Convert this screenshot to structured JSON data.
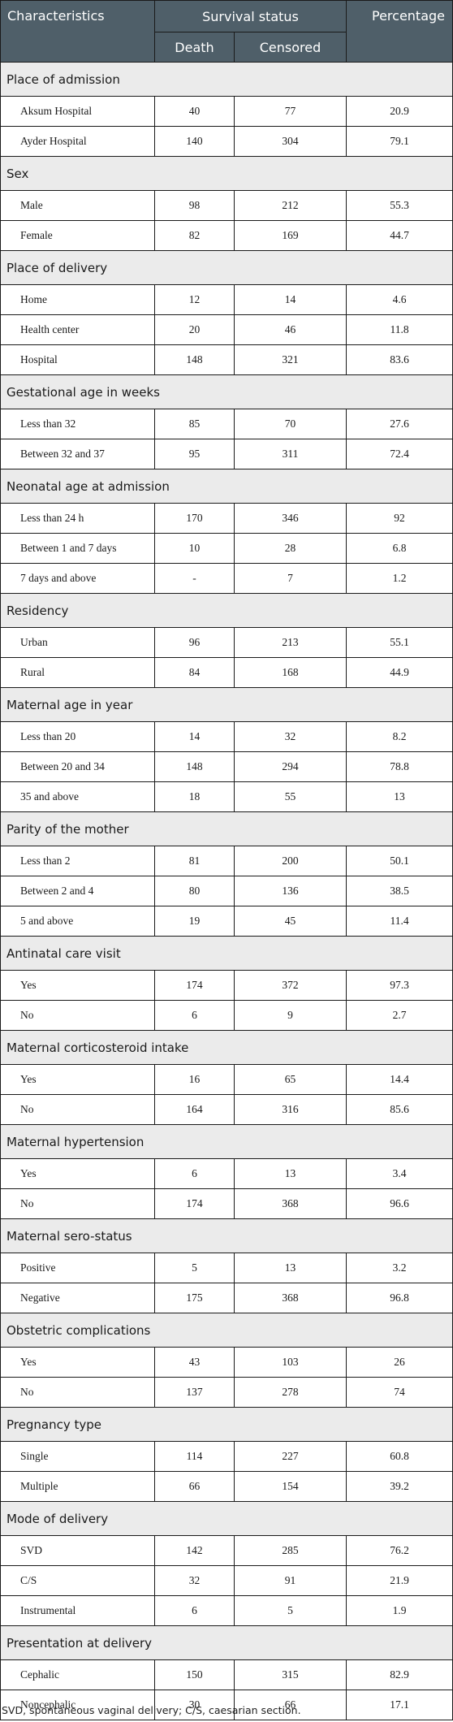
{
  "header": {
    "characteristics": "Characteristics",
    "survival_status": "Survival status",
    "percentage": "Percentage",
    "death": "Death",
    "censored": "Censored"
  },
  "sections": [
    {
      "title": "Place of admission",
      "rows": [
        {
          "label": "Aksum Hospital",
          "death": "40",
          "censored": "77",
          "percentage": "20.9"
        },
        {
          "label": "Ayder Hospital",
          "death": "140",
          "censored": "304",
          "percentage": "79.1"
        }
      ]
    },
    {
      "title": "Sex",
      "rows": [
        {
          "label": "Male",
          "death": "98",
          "censored": "212",
          "percentage": "55.3"
        },
        {
          "label": "Female",
          "death": "82",
          "censored": "169",
          "percentage": "44.7"
        }
      ]
    },
    {
      "title": "Place of delivery",
      "rows": [
        {
          "label": "Home",
          "death": "12",
          "censored": "14",
          "percentage": "4.6"
        },
        {
          "label": "Health center",
          "death": "20",
          "censored": "46",
          "percentage": "11.8"
        },
        {
          "label": "Hospital",
          "death": "148",
          "censored": "321",
          "percentage": "83.6"
        }
      ]
    },
    {
      "title": "Gestational age in weeks",
      "rows": [
        {
          "label": "Less than 32",
          "death": "85",
          "censored": "70",
          "percentage": "27.6"
        },
        {
          "label": "Between 32 and 37",
          "death": "95",
          "censored": "311",
          "percentage": "72.4"
        }
      ]
    },
    {
      "title": "Neonatal age at admission",
      "rows": [
        {
          "label": "Less than 24 h",
          "death": "170",
          "censored": "346",
          "percentage": "92"
        },
        {
          "label": "Between 1 and 7 days",
          "death": "10",
          "censored": "28",
          "percentage": "6.8"
        },
        {
          "label": "7 days and above",
          "death": "-",
          "censored": "7",
          "percentage": "1.2"
        }
      ]
    },
    {
      "title": "Residency",
      "rows": [
        {
          "label": "Urban",
          "death": "96",
          "censored": "213",
          "percentage": "55.1"
        },
        {
          "label": "Rural",
          "death": "84",
          "censored": "168",
          "percentage": "44.9"
        }
      ]
    },
    {
      "title": "Maternal age in year",
      "rows": [
        {
          "label": "Less than 20",
          "death": "14",
          "censored": "32",
          "percentage": "8.2"
        },
        {
          "label": "Between 20 and 34",
          "death": "148",
          "censored": "294",
          "percentage": "78.8"
        },
        {
          "label": "35 and above",
          "death": "18",
          "censored": "55",
          "percentage": "13"
        }
      ]
    },
    {
      "title": "Parity of the mother",
      "rows": [
        {
          "label": "Less than 2",
          "death": "81",
          "censored": "200",
          "percentage": "50.1"
        },
        {
          "label": "Between 2 and 4",
          "death": "80",
          "censored": "136",
          "percentage": "38.5"
        },
        {
          "label": "5 and above",
          "death": "19",
          "censored": "45",
          "percentage": "11.4"
        }
      ]
    },
    {
      "title": "Antinatal care visit",
      "rows": [
        {
          "label": "Yes",
          "death": "174",
          "censored": "372",
          "percentage": "97.3"
        },
        {
          "label": "No",
          "death": "6",
          "censored": "9",
          "percentage": "2.7"
        }
      ]
    },
    {
      "title": "Maternal corticosteroid intake",
      "rows": [
        {
          "label": "Yes",
          "death": "16",
          "censored": "65",
          "percentage": "14.4"
        },
        {
          "label": "No",
          "death": "164",
          "censored": "316",
          "percentage": "85.6"
        }
      ]
    },
    {
      "title": "Maternal hypertension",
      "rows": [
        {
          "label": "Yes",
          "death": "6",
          "censored": "13",
          "percentage": "3.4"
        },
        {
          "label": "No",
          "death": "174",
          "censored": "368",
          "percentage": "96.6"
        }
      ]
    },
    {
      "title": "Maternal sero-status",
      "rows": [
        {
          "label": "Positive",
          "death": "5",
          "censored": "13",
          "percentage": "3.2"
        },
        {
          "label": "Negative",
          "death": "175",
          "censored": "368",
          "percentage": "96.8"
        }
      ]
    },
    {
      "title": "Obstetric complications",
      "rows": [
        {
          "label": "Yes",
          "death": "43",
          "censored": "103",
          "percentage": "26"
        },
        {
          "label": "No",
          "death": "137",
          "censored": "278",
          "percentage": "74"
        }
      ]
    },
    {
      "title": "Pregnancy type",
      "rows": [
        {
          "label": "Single",
          "death": "114",
          "censored": "227",
          "percentage": "60.8"
        },
        {
          "label": "Multiple",
          "death": "66",
          "censored": "154",
          "percentage": "39.2"
        }
      ]
    },
    {
      "title": "Mode of delivery",
      "rows": [
        {
          "label": "SVD",
          "death": "142",
          "censored": "285",
          "percentage": "76.2"
        },
        {
          "label": "C/S",
          "death": "32",
          "censored": "91",
          "percentage": "21.9"
        },
        {
          "label": "Instrumental",
          "death": "6",
          "censored": "5",
          "percentage": "1.9"
        }
      ]
    },
    {
      "title": "Presentation at delivery",
      "rows": [
        {
          "label": "Cephalic",
          "death": "150",
          "censored": "315",
          "percentage": "82.9"
        },
        {
          "label": "Noncephalic",
          "death": "30",
          "censored": "66",
          "percentage": "17.1"
        }
      ]
    }
  ],
  "footnote": "SVD, spontaneous vaginal delivery; C/S, caesarian section."
}
